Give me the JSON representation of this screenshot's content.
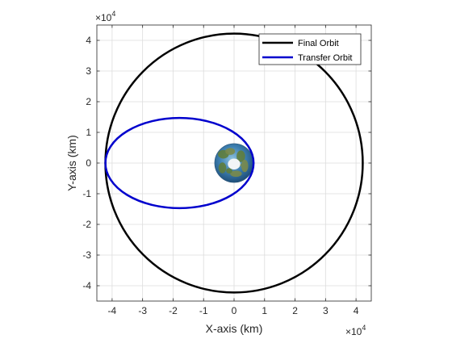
{
  "chart_data": {
    "type": "line",
    "title": "",
    "xlabel": "X-axis (km)",
    "ylabel": "Y-axis (km)",
    "x_multiplier": "×10",
    "y_multiplier": "×10",
    "exponent": "4",
    "xlim": [
      -4.5,
      4.5
    ],
    "ylim": [
      -4.5,
      4.5
    ],
    "xticks": [
      -4,
      -3,
      -2,
      -1,
      0,
      1,
      2,
      3,
      4
    ],
    "yticks": [
      -4,
      -3,
      -2,
      -1,
      0,
      1,
      2,
      3,
      4
    ],
    "xtick_labels": [
      "-4",
      "-3",
      "-2",
      "-1",
      "0",
      "1",
      "2",
      "3",
      "4"
    ],
    "ytick_labels": [
      "-4",
      "-3",
      "-2",
      "-1",
      "0",
      "1",
      "2",
      "3",
      "4"
    ],
    "grid": true,
    "legend_position": "top-right",
    "series": [
      {
        "name": "Final Orbit",
        "color": "#000000",
        "shape": "circle",
        "center": [
          0,
          0
        ],
        "radius": 4.22
      },
      {
        "name": "Transfer Orbit",
        "color": "#0000cd",
        "shape": "ellipse",
        "center": [
          -1.79,
          0
        ],
        "semi_major": 2.43,
        "semi_minor": 1.47
      }
    ],
    "body": {
      "name": "earth",
      "center": [
        0,
        0
      ],
      "radius": 0.637
    }
  }
}
